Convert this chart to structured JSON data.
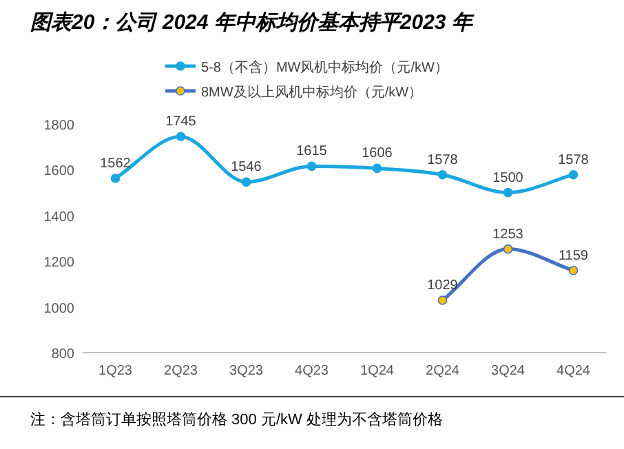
{
  "chart_data": {
    "type": "line",
    "title": "图表20：公司 2024 年中标均价基本持平2023 年",
    "categories": [
      "1Q23",
      "2Q23",
      "3Q23",
      "4Q23",
      "1Q24",
      "2Q24",
      "3Q24",
      "4Q24"
    ],
    "series": [
      {
        "name": "5-8（不含）MW风机中标均价（元/kW）",
        "color": "#1aa7e0",
        "values": [
          1562,
          1745,
          1546,
          1615,
          1606,
          1578,
          1500,
          1578
        ]
      },
      {
        "name": "8MW及以上风机中标均价（元/kW）",
        "color": "#4472c4",
        "colors": [
          null,
          null,
          null,
          null,
          null,
          "#ffc000",
          "#ffc000",
          "#ffc000"
        ],
        "values": [
          null,
          null,
          null,
          null,
          null,
          1029,
          1253,
          1159
        ]
      }
    ],
    "ylim": [
      800,
      1800
    ],
    "yticks": [
      800,
      1000,
      1200,
      1400,
      1600,
      1800
    ],
    "data_labels": true,
    "grid": false,
    "legend": "top left",
    "marker": "circle",
    "annotations": [
      "注：含塔筒订单按照塔筒价格 300 元/kW 处理为不含塔筒价格"
    ]
  }
}
